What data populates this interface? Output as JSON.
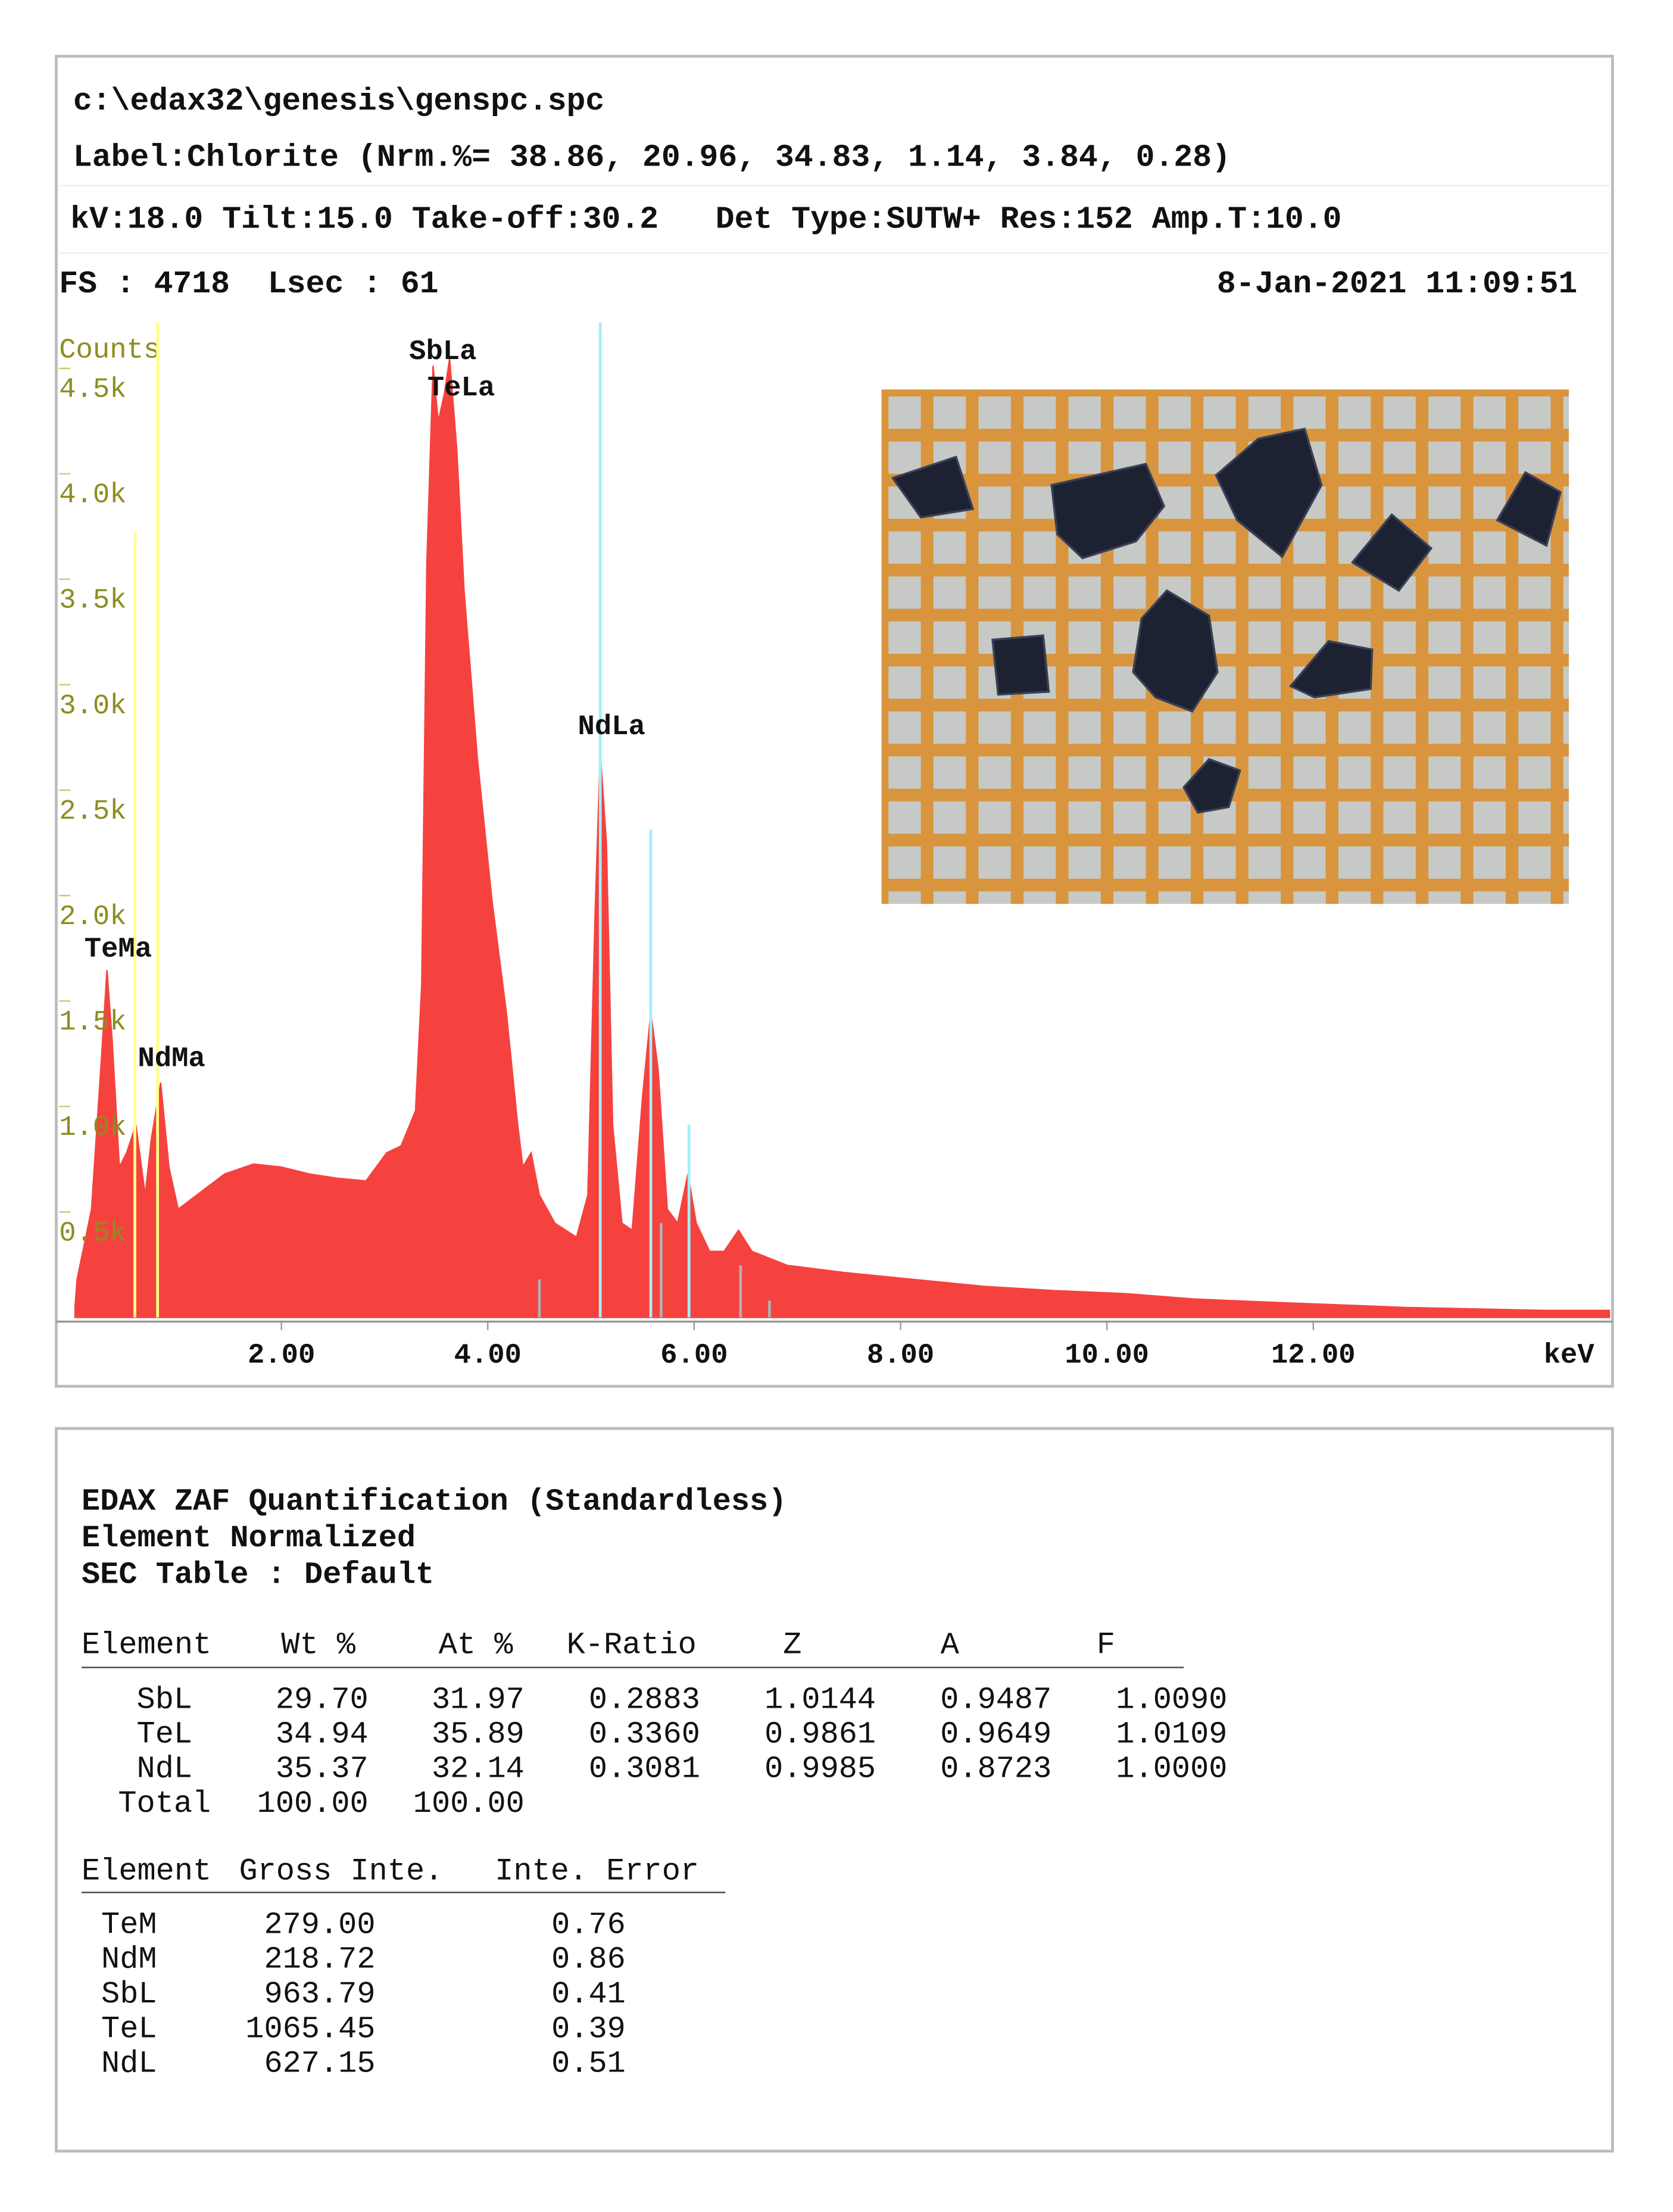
{
  "header": {
    "file": "c:\\edax32\\genesis\\genspc.spc",
    "label": "Label:Chlorite (Nrm.%= 38.86, 20.96, 34.83, 1.14, 3.84, 0.28)",
    "settings": "kV:18.0 Tilt:15.0 Take-off:30.2   Det Type:SUTW+ Res:152 Amp.T:10.0",
    "fs": "FS : 4718  Lsec : 61",
    "date": "8-Jan-2021 11:09:51"
  },
  "chart_data": {
    "type": "area",
    "color": "#f5423f",
    "xlabel": "keV",
    "ylabel": "Counts",
    "xlim": [
      -0.1,
      14.9
    ],
    "ylim": [
      0,
      4718
    ],
    "xticks": [
      {
        "value": 2,
        "label": "2.00"
      },
      {
        "value": 4,
        "label": "4.00"
      },
      {
        "value": 6,
        "label": "6.00"
      },
      {
        "value": 8,
        "label": "8.00"
      },
      {
        "value": 10,
        "label": "10.00"
      },
      {
        "value": 12,
        "label": "12.00"
      }
    ],
    "yticks": [
      {
        "value": 500,
        "label": "0.5k"
      },
      {
        "value": 1000,
        "label": "1.0k"
      },
      {
        "value": 1500,
        "label": "1.5k"
      },
      {
        "value": 2000,
        "label": "2.0k"
      },
      {
        "value": 2500,
        "label": "2.5k"
      },
      {
        "value": 3000,
        "label": "3.0k"
      },
      {
        "value": 3500,
        "label": "3.5k"
      },
      {
        "value": 4000,
        "label": "4.0k"
      },
      {
        "value": 4500,
        "label": "4.5k"
      }
    ],
    "x": [
      0.0,
      0.02,
      0.16,
      0.25,
      0.31,
      0.36,
      0.43,
      0.5,
      0.59,
      0.68,
      0.74,
      0.83,
      0.91,
      1.0,
      1.18,
      1.45,
      1.73,
      2.0,
      2.27,
      2.54,
      2.82,
      3.02,
      3.16,
      3.3,
      3.36,
      3.41,
      3.47,
      3.52,
      3.58,
      3.63,
      3.7,
      3.77,
      3.9,
      4.04,
      4.18,
      4.29,
      4.34,
      4.42,
      4.5,
      4.65,
      4.86,
      4.97,
      5.04,
      5.09,
      5.15,
      5.21,
      5.3,
      5.4,
      5.5,
      5.58,
      5.65,
      5.74,
      5.84,
      5.94,
      6.02,
      6.15,
      6.29,
      6.43,
      6.56,
      6.9,
      7.45,
      8.13,
      8.81,
      9.49,
      10.17,
      10.85,
      11.53,
      12.22,
      12.9,
      13.58,
      14.26,
      14.87
    ],
    "values": [
      50,
      180,
      513,
      1180,
      1647,
      1313,
      713,
      780,
      913,
      580,
      847,
      1113,
      713,
      513,
      580,
      680,
      727,
      713,
      680,
      660,
      647,
      780,
      813,
      980,
      1580,
      3580,
      4513,
      4247,
      4380,
      4547,
      4113,
      3447,
      2647,
      1980,
      1447,
      913,
      713,
      780,
      580,
      447,
      380,
      580,
      1913,
      2680,
      2247,
      913,
      447,
      413,
      1047,
      1447,
      1180,
      513,
      447,
      680,
      447,
      313,
      313,
      413,
      313,
      247,
      213,
      180,
      147,
      127,
      113,
      87,
      73,
      60,
      47,
      40,
      33,
      33
    ],
    "element_lines": [
      {
        "x": 0.58,
        "top": 3727,
        "color": "#ffff8c"
      },
      {
        "x": 0.8,
        "top": 4718,
        "color": "#ffff8c"
      },
      {
        "x": 5.09,
        "top": 4718,
        "color": "#9ff0ff"
      },
      {
        "x": 5.58,
        "top": 2313,
        "color": "#9ff0ff"
      },
      {
        "x": 5.95,
        "top": 913,
        "color": "#9ff0ff"
      },
      {
        "x": 4.5,
        "top": 180,
        "color": "#b0b0b0"
      },
      {
        "x": 5.68,
        "top": 447,
        "color": "#b0b0b0"
      },
      {
        "x": 6.45,
        "top": 247,
        "color": "#b0b0b0"
      },
      {
        "x": 6.73,
        "top": 80,
        "color": "#b0b0b0"
      }
    ],
    "annotations": [
      "SbLa",
      "TeLa",
      "NdLa",
      "TeMa",
      "NdMa"
    ]
  },
  "quant": {
    "title": "EDAX ZAF Quantification (Standardless)",
    "subtitle": "Element Normalized",
    "sec_table": "SEC Table : Default",
    "columns": [
      "Element",
      "Wt %",
      "At %",
      "K-Ratio",
      "Z",
      "A",
      "F"
    ],
    "rows": [
      [
        "SbL",
        "29.70",
        "31.97",
        "0.2883",
        "1.0144",
        "0.9487",
        "1.0090"
      ],
      [
        "TeL",
        "34.94",
        "35.89",
        "0.3360",
        "0.9861",
        "0.9649",
        "1.0109"
      ],
      [
        "NdL",
        "35.37",
        "32.14",
        "0.3081",
        "0.9985",
        "0.8723",
        "1.0000"
      ],
      [
        "Total",
        "100.00",
        "100.00"
      ]
    ]
  },
  "intensity": {
    "columns": [
      "Element",
      "Gross Inte.",
      "Inte. Error"
    ],
    "rows": [
      [
        "TeM",
        "279.00",
        "0.76"
      ],
      [
        "NdM",
        "218.72",
        "0.86"
      ],
      [
        "SbL",
        "963.79",
        "0.41"
      ],
      [
        "TeL",
        "1065.45",
        "0.39"
      ],
      [
        "NdL",
        "627.15",
        "0.51"
      ]
    ]
  }
}
